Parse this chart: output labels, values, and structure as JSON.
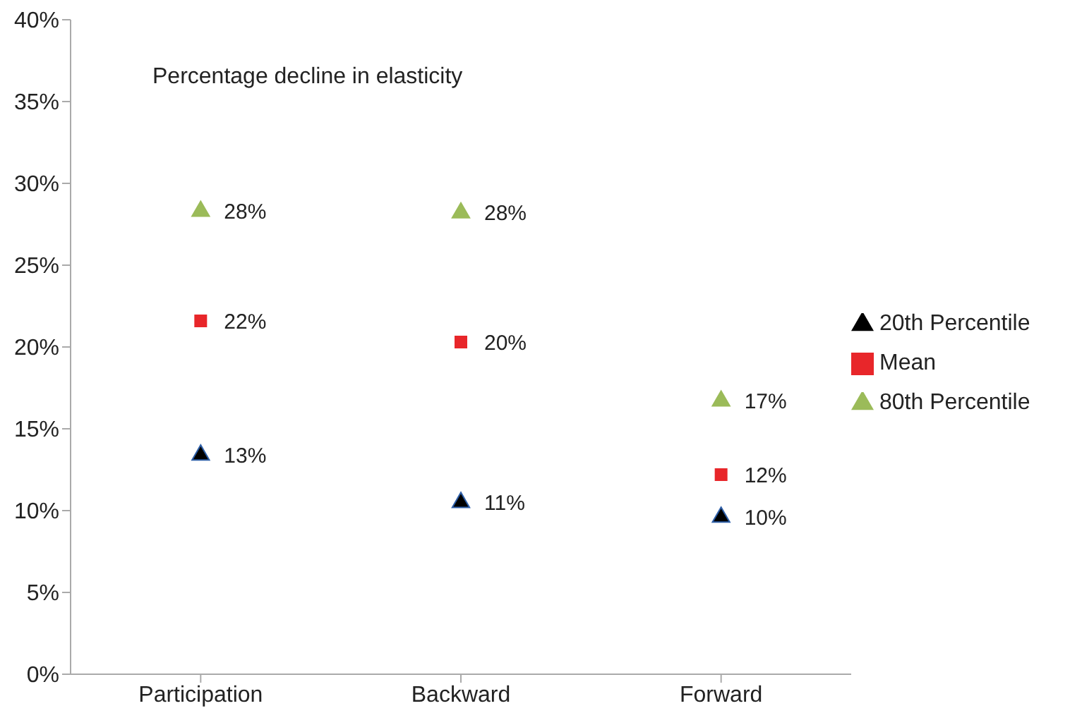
{
  "chart_data": {
    "type": "scatter",
    "title": "Percentage decline in elasticity",
    "categories": [
      "Participation",
      "Backward",
      "Forward"
    ],
    "series": [
      {
        "name": "20th Percentile",
        "color": "#000000",
        "marker": "triangle",
        "values": [
          13.4,
          10.5,
          9.6
        ],
        "value_labels": [
          "13%",
          "11%",
          "10%"
        ]
      },
      {
        "name": "Mean",
        "color": "#e8262a",
        "marker": "square",
        "values": [
          21.6,
          20.3,
          12.2
        ],
        "value_labels": [
          "22%",
          "20%",
          "12%"
        ]
      },
      {
        "name": "80th Percentile",
        "color": "#9bbb59",
        "marker": "triangle",
        "values": [
          28.3,
          28.2,
          16.7
        ],
        "value_labels": [
          "28%",
          "28%",
          "17%"
        ]
      }
    ],
    "ylim": [
      0,
      40
    ],
    "yticks": [
      {
        "value": 0,
        "label": "0%"
      },
      {
        "value": 5,
        "label": "5%"
      },
      {
        "value": 10,
        "label": "10%"
      },
      {
        "value": 15,
        "label": "15%"
      },
      {
        "value": 20,
        "label": "20%"
      },
      {
        "value": 25,
        "label": "25%"
      },
      {
        "value": 30,
        "label": "30%"
      },
      {
        "value": 35,
        "label": "35%"
      },
      {
        "value": 40,
        "label": "40%"
      }
    ],
    "grid": false,
    "legend": "right"
  }
}
